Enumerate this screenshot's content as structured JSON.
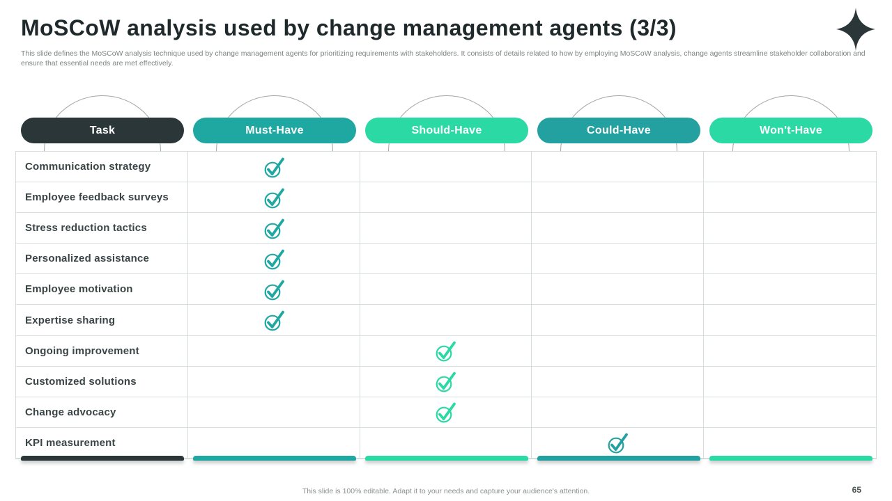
{
  "slide": {
    "title": "MoSCoW analysis used by change management agents (3/3)",
    "subtitle": "This slide defines the MoSCoW analysis technique used by change management agents for prioritizing requirements with stakeholders. It consists of details related to how by employing MoSCoW analysis, change agents streamline stakeholder collaboration and ensure that essential needs are met effectively.",
    "footer_note": "This slide is 100% editable. Adapt it to your needs and capture your audience's attention.",
    "page_number": "65"
  },
  "icons": {
    "star": "four-point-star-icon",
    "check": "circled-check-icon"
  },
  "colors": {
    "dark": "#2B3638",
    "must": "#1FA7A2",
    "should": "#2BD9A4",
    "could": "#23A1A0",
    "wont": "#2BD9A4",
    "grid_line": "#D7DCDC",
    "arc_line": "#A0A6A6"
  },
  "table": {
    "columns": [
      {
        "key": "task",
        "label": "Task",
        "color_key": "dark"
      },
      {
        "key": "must",
        "label": "Must-Have",
        "color_key": "must"
      },
      {
        "key": "should",
        "label": "Should-Have",
        "color_key": "should"
      },
      {
        "key": "could",
        "label": "Could-Have",
        "color_key": "could"
      },
      {
        "key": "wont",
        "label": "Won't-Have",
        "color_key": "wont"
      }
    ],
    "rows": [
      {
        "task": "Communication strategy",
        "check": "must"
      },
      {
        "task": "Employee feedback surveys",
        "check": "must"
      },
      {
        "task": "Stress reduction tactics",
        "check": "must"
      },
      {
        "task": "Personalized assistance",
        "check": "must"
      },
      {
        "task": "Employee motivation",
        "check": "must"
      },
      {
        "task": "Expertise sharing",
        "check": "must"
      },
      {
        "task": "Ongoing improvement",
        "check": "should"
      },
      {
        "task": "Customized solutions",
        "check": "should"
      },
      {
        "task": "Change advocacy",
        "check": "should"
      },
      {
        "task": "KPI measurement",
        "check": "could"
      }
    ]
  }
}
